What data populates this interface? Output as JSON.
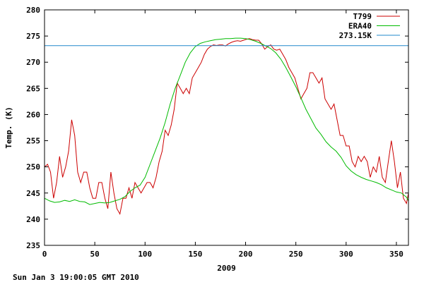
{
  "chart_data": {
    "type": "line",
    "title": "",
    "xlabel": "2009",
    "ylabel": "Temp. (K)",
    "xlim": [
      0,
      362
    ],
    "ylim": [
      235,
      280
    ],
    "xticks": [
      0,
      50,
      100,
      150,
      200,
      250,
      300,
      350
    ],
    "yticks": [
      235,
      240,
      245,
      250,
      255,
      260,
      265,
      270,
      275,
      280
    ],
    "grid": false,
    "legend_position": "top-right",
    "series": [
      {
        "name": "T799",
        "color": "#cc0000",
        "x": [
          0,
          3,
          6,
          9,
          12,
          15,
          18,
          21,
          24,
          27,
          30,
          33,
          36,
          39,
          42,
          45,
          48,
          51,
          54,
          57,
          60,
          63,
          66,
          69,
          72,
          75,
          78,
          81,
          84,
          87,
          90,
          93,
          96,
          99,
          102,
          105,
          108,
          111,
          114,
          117,
          120,
          123,
          126,
          129,
          132,
          135,
          138,
          141,
          144,
          147,
          150,
          153,
          156,
          159,
          162,
          165,
          168,
          171,
          174,
          177,
          180,
          183,
          186,
          189,
          192,
          195,
          198,
          201,
          204,
          207,
          210,
          213,
          216,
          219,
          222,
          225,
          228,
          231,
          234,
          237,
          240,
          243,
          246,
          249,
          252,
          255,
          258,
          261,
          264,
          267,
          270,
          273,
          276,
          279,
          282,
          285,
          288,
          291,
          294,
          297,
          300,
          303,
          306,
          309,
          312,
          315,
          318,
          321,
          324,
          327,
          330,
          333,
          336,
          339,
          342,
          345,
          348,
          351,
          354,
          357,
          360,
          362
        ],
        "y": [
          250,
          250.5,
          249,
          244,
          247,
          252,
          248,
          250,
          253,
          259,
          256,
          249,
          247,
          249,
          249,
          246,
          244,
          244,
          247,
          247,
          244,
          242,
          249,
          245,
          242,
          241,
          244,
          244,
          246,
          244,
          247,
          246,
          245,
          246,
          247,
          247,
          246,
          248,
          251,
          253,
          257,
          256,
          258,
          261,
          266,
          265,
          264,
          265,
          264,
          267,
          268,
          269,
          270,
          271.5,
          272.5,
          273,
          273.3,
          273.2,
          273.3,
          273.3,
          273.1,
          273.5,
          273.8,
          274,
          274.1,
          274,
          274.2,
          274.4,
          274.5,
          274.3,
          274.2,
          274.2,
          273.5,
          272.5,
          273,
          273.3,
          272.5,
          272.3,
          272.5,
          271.5,
          270.5,
          269,
          268,
          267,
          265,
          263,
          264,
          265,
          268,
          268,
          267,
          266,
          267,
          263,
          262,
          261,
          262,
          259,
          256,
          256,
          254,
          254,
          251,
          250,
          252,
          251,
          252,
          251,
          248,
          250,
          249,
          252,
          248,
          247,
          251,
          255,
          251,
          246,
          249,
          244,
          243,
          245
        ]
      },
      {
        "name": "ERA40",
        "color": "#00bb00",
        "x": [
          0,
          5,
          10,
          15,
          20,
          25,
          30,
          35,
          40,
          45,
          50,
          55,
          60,
          65,
          70,
          75,
          80,
          85,
          90,
          95,
          100,
          105,
          110,
          115,
          120,
          125,
          130,
          135,
          140,
          145,
          150,
          155,
          160,
          165,
          170,
          175,
          180,
          185,
          190,
          195,
          200,
          205,
          210,
          215,
          220,
          225,
          230,
          235,
          240,
          245,
          250,
          255,
          260,
          265,
          270,
          275,
          280,
          285,
          290,
          295,
          300,
          305,
          310,
          315,
          320,
          325,
          330,
          335,
          340,
          345,
          350,
          355,
          360,
          362
        ],
        "y": [
          244,
          243.5,
          243.2,
          243.3,
          243.6,
          243.4,
          243.7,
          243.4,
          243.3,
          242.8,
          243,
          243.2,
          243.1,
          243.2,
          243.5,
          243.8,
          244.3,
          245.3,
          246,
          246.5,
          248,
          250.5,
          253,
          255.5,
          258.5,
          262,
          265,
          267.5,
          270,
          271.8,
          273,
          273.6,
          273.9,
          274.1,
          274.3,
          274.4,
          274.5,
          274.5,
          274.6,
          274.6,
          274.5,
          274.3,
          274,
          273.6,
          273.1,
          272.6,
          271.8,
          270.6,
          269,
          267.2,
          265.3,
          263.2,
          261,
          259.2,
          257.4,
          256.2,
          254.8,
          253.8,
          253,
          251.8,
          250.2,
          249.2,
          248.5,
          248,
          247.6,
          247.3,
          247,
          246.6,
          246,
          245.6,
          245.2,
          245,
          244.2,
          243.5
        ]
      },
      {
        "name": "273.15K",
        "color": "#2288cc",
        "x": [
          0,
          362
        ],
        "y": [
          273.15,
          273.15
        ]
      }
    ]
  },
  "footer": {
    "timestamp": "Sun Jan  3 19:00:05 GMT 2010"
  }
}
